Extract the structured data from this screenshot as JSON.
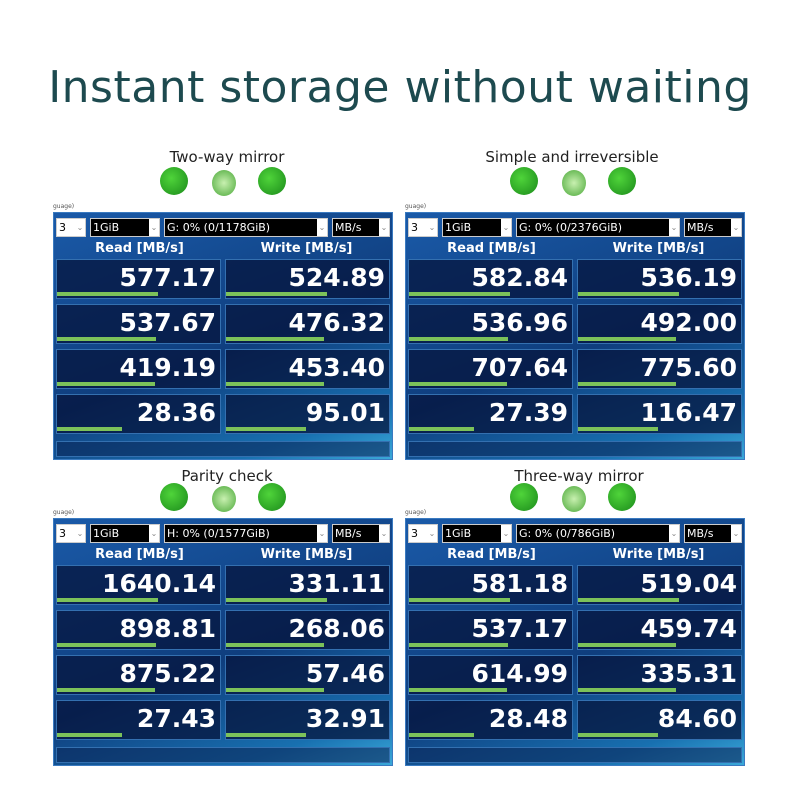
{
  "title": "Instant storage without waiting",
  "colors": {
    "title": "#1d4a4f",
    "panel": "#0f3e7e",
    "bar": "#7cc25a"
  },
  "panels": [
    {
      "caption": "Two-way mirror",
      "lang": "guage)",
      "count": "3",
      "size": "1GiB",
      "drive": "G: 0% (0/1178GiB)",
      "unit": "MB/s",
      "read_header": "Read [MB/s]",
      "write_header": "Write [MB/s]",
      "rows": [
        {
          "read": "577.17",
          "write": "524.89",
          "read_fill": 0.62,
          "write_fill": 0.62
        },
        {
          "read": "537.67",
          "write": "476.32",
          "read_fill": 0.61,
          "write_fill": 0.6
        },
        {
          "read": "419.19",
          "write": "453.40",
          "read_fill": 0.6,
          "write_fill": 0.6
        },
        {
          "read": "28.36",
          "write": "95.01",
          "read_fill": 0.4,
          "write_fill": 0.49
        }
      ]
    },
    {
      "caption": "Simple and irreversible",
      "lang": "guage)",
      "count": "3",
      "size": "1GiB",
      "drive": "G: 0% (0/2376GiB)",
      "unit": "MB/s",
      "read_header": "Read [MB/s]",
      "write_header": "Write [MB/s]",
      "rows": [
        {
          "read": "582.84",
          "write": "536.19",
          "read_fill": 0.62,
          "write_fill": 0.62
        },
        {
          "read": "536.96",
          "write": "492.00",
          "read_fill": 0.61,
          "write_fill": 0.6
        },
        {
          "read": "707.64",
          "write": "775.60",
          "read_fill": 0.6,
          "write_fill": 0.6
        },
        {
          "read": "27.39",
          "write": "116.47",
          "read_fill": 0.4,
          "write_fill": 0.49
        }
      ]
    },
    {
      "caption": "Parity check",
      "lang": "guage)",
      "count": "3",
      "size": "1GiB",
      "drive": "H: 0% (0/1577GiB)",
      "unit": "MB/s",
      "read_header": "Read [MB/s]",
      "write_header": "Write [MB/s]",
      "rows": [
        {
          "read": "1640.14",
          "write": "331.11",
          "read_fill": 0.62,
          "write_fill": 0.62
        },
        {
          "read": "898.81",
          "write": "268.06",
          "read_fill": 0.61,
          "write_fill": 0.6
        },
        {
          "read": "875.22",
          "write": "57.46",
          "read_fill": 0.6,
          "write_fill": 0.6
        },
        {
          "read": "27.43",
          "write": "32.91",
          "read_fill": 0.4,
          "write_fill": 0.49
        }
      ]
    },
    {
      "caption": "Three-way mirror",
      "lang": "guage)",
      "count": "3",
      "size": "1GiB",
      "drive": "G: 0% (0/786GiB)",
      "unit": "MB/s",
      "read_header": "Read [MB/s]",
      "write_header": "Write [MB/s]",
      "rows": [
        {
          "read": "581.18",
          "write": "519.04",
          "read_fill": 0.62,
          "write_fill": 0.62
        },
        {
          "read": "537.17",
          "write": "459.74",
          "read_fill": 0.61,
          "write_fill": 0.6
        },
        {
          "read": "614.99",
          "write": "335.31",
          "read_fill": 0.6,
          "write_fill": 0.6
        },
        {
          "read": "28.48",
          "write": "84.60",
          "read_fill": 0.4,
          "write_fill": 0.49
        }
      ]
    }
  ]
}
